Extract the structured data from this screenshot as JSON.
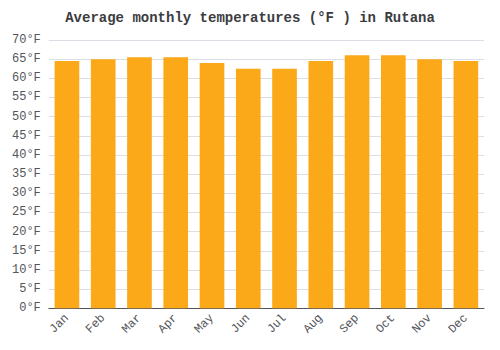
{
  "chart_data": {
    "type": "bar",
    "title": "Average monthly temperatures (°F ) in Rutana",
    "categories": [
      "Jan",
      "Feb",
      "Mar",
      "Apr",
      "May",
      "Jun",
      "Jul",
      "Aug",
      "Sep",
      "Oct",
      "Nov",
      "Dec"
    ],
    "values": [
      64.5,
      65.0,
      65.5,
      65.5,
      64.0,
      62.5,
      62.5,
      64.5,
      66.0,
      66.0,
      65.0,
      64.5
    ],
    "color": "#FBA919",
    "ylim": [
      0,
      70
    ],
    "yticks": [
      {
        "value": 0,
        "label": "0°F"
      },
      {
        "value": 5,
        "label": "5°F"
      },
      {
        "value": 10,
        "label": "10°F"
      },
      {
        "value": 15,
        "label": "15°F"
      },
      {
        "value": 20,
        "label": "20°F"
      },
      {
        "value": 25,
        "label": "25°F"
      },
      {
        "value": 30,
        "label": "30°F"
      },
      {
        "value": 35,
        "label": "35°F"
      },
      {
        "value": 40,
        "label": "40°F"
      },
      {
        "value": 45,
        "label": "45°F"
      },
      {
        "value": 50,
        "label": "50°F"
      },
      {
        "value": 55,
        "label": "55°F"
      },
      {
        "value": 60,
        "label": "60°F"
      },
      {
        "value": 65,
        "label": "65°F"
      },
      {
        "value": 70,
        "label": "70°F"
      }
    ],
    "grid": true
  }
}
